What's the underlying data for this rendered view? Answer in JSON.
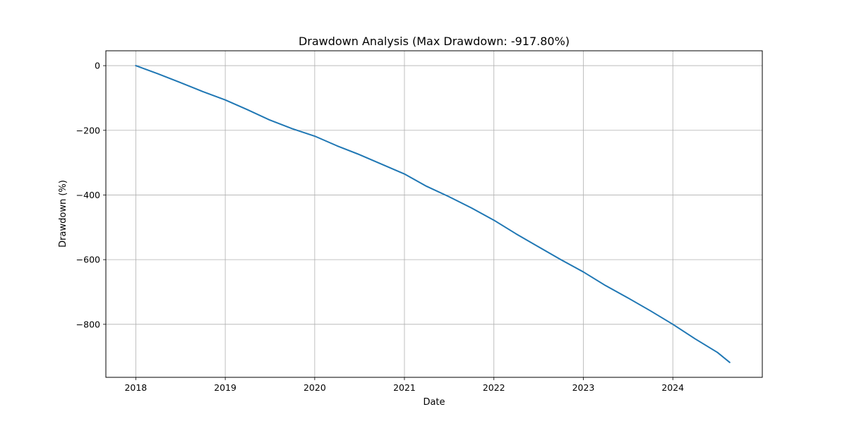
{
  "chart_data": {
    "type": "line",
    "title": "Drawdown Analysis (Max Drawdown: -917.80%)",
    "xlabel": "Date",
    "ylabel": "Drawdown (%)",
    "x_ticks": [
      "2018",
      "2019",
      "2020",
      "2021",
      "2022",
      "2023",
      "2024"
    ],
    "y_ticks": [
      0,
      -200,
      -400,
      -600,
      -800
    ],
    "y_tick_labels": [
      "0",
      "−200",
      "−400",
      "−600",
      "−800"
    ],
    "xlim": [
      "2017-09-01",
      "2024-12-31"
    ],
    "ylim": [
      -964,
      46
    ],
    "grid": true,
    "colors": {
      "line": "#1f77b4",
      "grid": "#b0b0b0",
      "axes": "#000000"
    },
    "series": [
      {
        "x": [
          "2018-01-01",
          "2018-04-01",
          "2018-07-01",
          "2018-10-01",
          "2019-01-01",
          "2019-04-01",
          "2019-07-01",
          "2019-10-01",
          "2020-01-01",
          "2020-04-01",
          "2020-07-01",
          "2020-10-01",
          "2021-01-01",
          "2021-04-01",
          "2021-07-01",
          "2021-10-01",
          "2022-01-01",
          "2022-04-01",
          "2022-07-01",
          "2022-10-01",
          "2023-01-01",
          "2023-04-01",
          "2023-07-01",
          "2023-10-01",
          "2024-01-01",
          "2024-04-01",
          "2024-07-01",
          "2024-08-20"
        ],
        "values": [
          0,
          -25,
          -52,
          -80,
          -106,
          -136,
          -168,
          -195,
          -218,
          -248,
          -275,
          -305,
          -335,
          -373,
          -405,
          -440,
          -478,
          -520,
          -560,
          -600,
          -638,
          -680,
          -718,
          -758,
          -800,
          -845,
          -887,
          -917.8
        ]
      }
    ]
  }
}
